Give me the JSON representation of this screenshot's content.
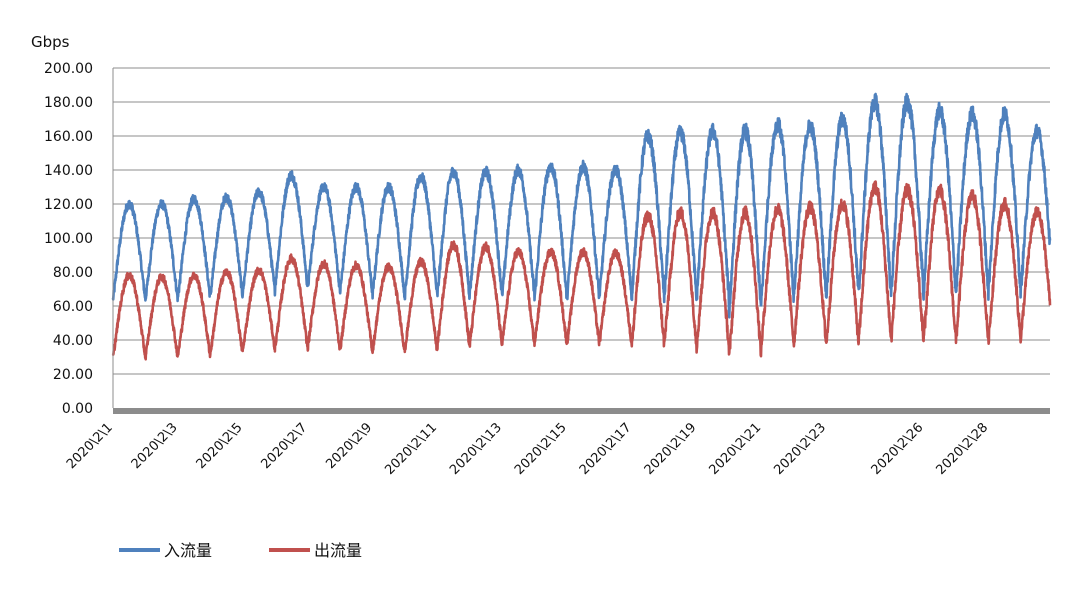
{
  "chart_data": {
    "type": "line",
    "ylabel": "Gbps",
    "ylim": [
      0,
      200
    ],
    "yticks": [
      "0.00",
      "20.00",
      "40.00",
      "60.00",
      "80.00",
      "100.00",
      "120.00",
      "140.00",
      "160.00",
      "180.00",
      "200.00"
    ],
    "x_range_days": [
      1,
      29.9
    ],
    "x_tick_labels": [
      "2020\\2\\1",
      "2020\\2\\3",
      "2020\\2\\5",
      "2020\\2\\7",
      "2020\\2\\9",
      "2020\\2\\11",
      "2020\\2\\13",
      "2020\\2\\15",
      "2020\\2\\17",
      "2020\\2\\19",
      "2020\\2\\21",
      "2020\\2\\23",
      "2020\\2\\26",
      "2020\\2\\28"
    ],
    "grid": true,
    "legend_position": "bottom-left",
    "series": [
      {
        "name": "入流量",
        "color": "#4f81bd",
        "daily_peak": [
          120,
          120,
          123,
          124,
          127,
          137,
          130,
          130,
          130,
          136,
          139,
          139,
          140,
          142,
          142,
          140,
          160,
          162,
          163,
          163,
          167,
          166,
          170,
          180,
          180,
          175,
          173,
          173,
          163
        ],
        "daily_low": [
          64,
          64,
          65,
          66,
          68,
          72,
          70,
          68,
          66,
          66,
          66,
          67,
          66,
          65,
          65,
          66,
          66,
          65,
          65,
          55,
          65,
          66,
          66,
          67,
          68,
          68,
          68,
          68,
          70
        ]
      },
      {
        "name": "出流量",
        "color": "#c0504d",
        "daily_peak": [
          78,
          77,
          78,
          80,
          81,
          88,
          85,
          84,
          83,
          86,
          96,
          95,
          92,
          92,
          92,
          91,
          113,
          115,
          115,
          115,
          117,
          118,
          120,
          130,
          128,
          128,
          125,
          120,
          115
        ],
        "daily_low": [
          30,
          30,
          31,
          32,
          34,
          36,
          35,
          34,
          33,
          34,
          36,
          37,
          38,
          38,
          38,
          38,
          38,
          37,
          36,
          30,
          38,
          38,
          38,
          40,
          40,
          40,
          40,
          40,
          42
        ]
      }
    ]
  }
}
